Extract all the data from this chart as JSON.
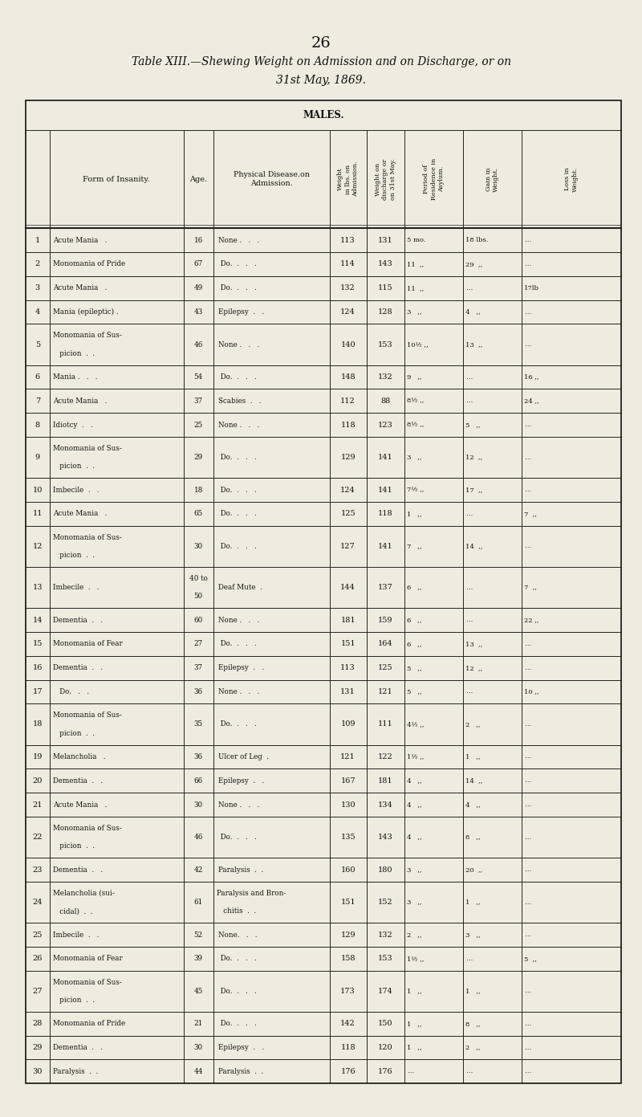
{
  "page_number": "26",
  "title_line1": "Table XIII.—Shewing Weight on Admission and on Discharge, or on",
  "title_line2": "31st May, 1869.",
  "section_title": "MALES.",
  "bg_color": "#f0ebe0",
  "text_color": "#111111",
  "line_color": "#222222",
  "rows": [
    {
      "num": "1",
      "form1": "Acute Mania   .",
      "form2": "",
      "age": "16",
      "age2": "",
      "dis1": "None .   .   .",
      "dis2": "",
      "w_adm": "113",
      "w_dis": "131",
      "period": "5 mo.",
      "gain": "18 lbs.",
      "loss": "…"
    },
    {
      "num": "2",
      "form1": "Monomania of Pride",
      "form2": "",
      "age": "67",
      "age2": "",
      "dis1": " Do.  .   .   .",
      "dis2": "",
      "w_adm": "114",
      "w_dis": "143",
      "period": "11  ,,",
      "gain": "29  ,,",
      "loss": "…"
    },
    {
      "num": "3",
      "form1": "Acute Mania   .",
      "form2": "",
      "age": "49",
      "age2": "",
      "dis1": " Do.  .   .   .",
      "dis2": "",
      "w_adm": "132",
      "w_dis": "115",
      "period": "11  ,,",
      "gain": "…",
      "loss": "17lb"
    },
    {
      "num": "4",
      "form1": "Mania (epileptic) .",
      "form2": "",
      "age": "43",
      "age2": "",
      "dis1": "Epilepsy  .   .",
      "dis2": "",
      "w_adm": "124",
      "w_dis": "128",
      "period": "3   ,,",
      "gain": "4   ,,",
      "loss": "…"
    },
    {
      "num": "5",
      "form1": "Monomania of Sus-",
      "form2": "   picion  .  .",
      "age": "46",
      "age2": "",
      "dis1": "None .   .   .",
      "dis2": "",
      "w_adm": "140",
      "w_dis": "153",
      "period": "10½ ,,",
      "gain": "13  ,,",
      "loss": "…"
    },
    {
      "num": "6",
      "form1": "Mania .   .   .",
      "form2": "",
      "age": "54",
      "age2": "",
      "dis1": " Do.  .   .   .",
      "dis2": "",
      "w_adm": "148",
      "w_dis": "132",
      "period": "9   ,,",
      "gain": "…",
      "loss": "16 ,,"
    },
    {
      "num": "7",
      "form1": "Acute Mania   .",
      "form2": "",
      "age": "37",
      "age2": "",
      "dis1": "Scabies  .   .",
      "dis2": "",
      "w_adm": "112",
      "w_dis": "88",
      "period": "8½ ,,",
      "gain": "…",
      "loss": "24 ,,"
    },
    {
      "num": "8",
      "form1": "Idiotcy  .   .",
      "form2": "",
      "age": "25",
      "age2": "",
      "dis1": "None .   .   .",
      "dis2": "",
      "w_adm": "118",
      "w_dis": "123",
      "period": "8½ ,,",
      "gain": "5   ,,",
      "loss": "…"
    },
    {
      "num": "9",
      "form1": "Monomania of Sus-",
      "form2": "   picion  .  .",
      "age": "29",
      "age2": "",
      "dis1": " Do.  .   .   .",
      "dis2": "",
      "w_adm": "129",
      "w_dis": "141",
      "period": "3   ,,",
      "gain": "12  ,,",
      "loss": "…"
    },
    {
      "num": "10",
      "form1": "Imbecile  .   .",
      "form2": "",
      "age": "18",
      "age2": "",
      "dis1": " Do.  .   .   .",
      "dis2": "",
      "w_adm": "124",
      "w_dis": "141",
      "period": "7½ ,,",
      "gain": "17  ,,",
      "loss": "…"
    },
    {
      "num": "11",
      "form1": "Acute Mania   .",
      "form2": "",
      "age": "65",
      "age2": "",
      "dis1": " Do.  .   .   .",
      "dis2": "",
      "w_adm": "125",
      "w_dis": "118",
      "period": "1   ,,",
      "gain": "…",
      "loss": "7  ,,"
    },
    {
      "num": "12",
      "form1": "Monomania of Sus-",
      "form2": "   picion  .  .",
      "age": "30",
      "age2": "",
      "dis1": " Do.  .   .   .",
      "dis2": "",
      "w_adm": "127",
      "w_dis": "141",
      "period": "7   ,,",
      "gain": "14  ,,",
      "loss": "…"
    },
    {
      "num": "13",
      "form1": "Imbecile  .   .",
      "form2": "",
      "age": "40 to",
      "age2": "50",
      "dis1": "Deaf Mute  .",
      "dis2": "",
      "w_adm": "144",
      "w_dis": "137",
      "period": "6   ,,",
      "gain": "…",
      "loss": "7  ,,"
    },
    {
      "num": "14",
      "form1": "Dementia  .   .",
      "form2": "",
      "age": "60",
      "age2": "",
      "dis1": "None .   .   .",
      "dis2": "",
      "w_adm": "181",
      "w_dis": "159",
      "period": "6   ,,",
      "gain": "…",
      "loss": "22 ,,"
    },
    {
      "num": "15",
      "form1": "Monomania of Fear",
      "form2": "",
      "age": "27",
      "age2": "",
      "dis1": " Do.  .   .   .",
      "dis2": "",
      "w_adm": "151",
      "w_dis": "164",
      "period": "6   ,,",
      "gain": "13  ,,",
      "loss": "…"
    },
    {
      "num": "16",
      "form1": "Dementia  .   .",
      "form2": "",
      "age": "37",
      "age2": "",
      "dis1": "Epilepsy  .   .",
      "dis2": "",
      "w_adm": "113",
      "w_dis": "125",
      "period": "5   ,,",
      "gain": "12  ,,",
      "loss": "…"
    },
    {
      "num": "17",
      "form1": "   Do.   .   .",
      "form2": "",
      "age": "36",
      "age2": "",
      "dis1": "None .   .   .",
      "dis2": "",
      "w_adm": "131",
      "w_dis": "121",
      "period": "5   ,,",
      "gain": "…",
      "loss": "10 ,,"
    },
    {
      "num": "18",
      "form1": "Monomania of Sus-",
      "form2": "   picion  .  .",
      "age": "35",
      "age2": "",
      "dis1": " Do.  .   .   .",
      "dis2": "",
      "w_adm": "109",
      "w_dis": "111",
      "period": "4½ ,,",
      "gain": "2   ,,",
      "loss": "…"
    },
    {
      "num": "19",
      "form1": "Melancholia   .",
      "form2": "",
      "age": "36",
      "age2": "",
      "dis1": "Ulcer of Leg  .",
      "dis2": "",
      "w_adm": "121",
      "w_dis": "122",
      "period": "1½ ,,",
      "gain": "1   ,,",
      "loss": "…"
    },
    {
      "num": "20",
      "form1": "Dementia  .   .",
      "form2": "",
      "age": "66",
      "age2": "",
      "dis1": "Epilepsy  .   .",
      "dis2": "",
      "w_adm": "167",
      "w_dis": "181",
      "period": "4   ,,",
      "gain": "14  ,,",
      "loss": "…"
    },
    {
      "num": "21",
      "form1": "Acute Mania   .",
      "form2": "",
      "age": "30",
      "age2": "",
      "dis1": "None .   .   .",
      "dis2": "",
      "w_adm": "130",
      "w_dis": "134",
      "period": "4   ,,",
      "gain": "4   ,,",
      "loss": "…"
    },
    {
      "num": "22",
      "form1": "Monomania of Sus-",
      "form2": "   picion  .  .",
      "age": "46",
      "age2": "",
      "dis1": " Do.  .   .   .",
      "dis2": "",
      "w_adm": "135",
      "w_dis": "143",
      "period": "4   ,,",
      "gain": "8   ,,",
      "loss": "…"
    },
    {
      "num": "23",
      "form1": "Dementia  .   .",
      "form2": "",
      "age": "42",
      "age2": "",
      "dis1": "Paralysis  .  .",
      "dis2": "",
      "w_adm": "160",
      "w_dis": "180",
      "period": "3   ,,",
      "gain": "20  ,,",
      "loss": "…"
    },
    {
      "num": "24",
      "form1": "Melancholia (sui-",
      "form2": "   cidal)  .  .",
      "age": "61",
      "age2": "",
      "dis1": "Paralysis and Bron-",
      "dis2": "   chitis  .  .",
      "w_adm": "151",
      "w_dis": "152",
      "period": "3   ,,",
      "gain": "1   ,,",
      "loss": "…"
    },
    {
      "num": "25",
      "form1": "Imbecile  .   .",
      "form2": "",
      "age": "52",
      "age2": "",
      "dis1": "None.   .   .",
      "dis2": "",
      "w_adm": "129",
      "w_dis": "132",
      "period": "2   ,,",
      "gain": "3   ,,",
      "loss": "…"
    },
    {
      "num": "26",
      "form1": "Monomania of Fear",
      "form2": "",
      "age": "39",
      "age2": "",
      "dis1": " Do.  .   .   .",
      "dis2": "",
      "w_adm": "158",
      "w_dis": "153",
      "period": "1½ ,,",
      "gain": "…",
      "loss": "5  ,,"
    },
    {
      "num": "27",
      "form1": "Monomania of Sus-",
      "form2": "   picion  .  .",
      "age": "45",
      "age2": "",
      "dis1": " Do.  .   .   .",
      "dis2": "",
      "w_adm": "173",
      "w_dis": "174",
      "period": "1   ,,",
      "gain": "1   ,,",
      "loss": "…"
    },
    {
      "num": "28",
      "form1": "Monomania of Pride",
      "form2": "",
      "age": "21",
      "age2": "",
      "dis1": " Do.  .   .   .",
      "dis2": "",
      "w_adm": "142",
      "w_dis": "150",
      "period": "1   ,,",
      "gain": "8   ,,",
      "loss": "…"
    },
    {
      "num": "29",
      "form1": "Dementia  .   .",
      "form2": "",
      "age": "30",
      "age2": "",
      "dis1": "Epilepsy  .   .",
      "dis2": "",
      "w_adm": "118",
      "w_dis": "120",
      "period": "1   ,,",
      "gain": "2   ,,",
      "loss": "…"
    },
    {
      "num": "30",
      "form1": "Paralysis  .  .",
      "form2": "",
      "age": "44",
      "age2": "",
      "dis1": "Paralysis  .  .",
      "dis2": "",
      "w_adm": "176",
      "w_dis": "176",
      "period": "…",
      "gain": "…",
      "loss": "…"
    }
  ]
}
